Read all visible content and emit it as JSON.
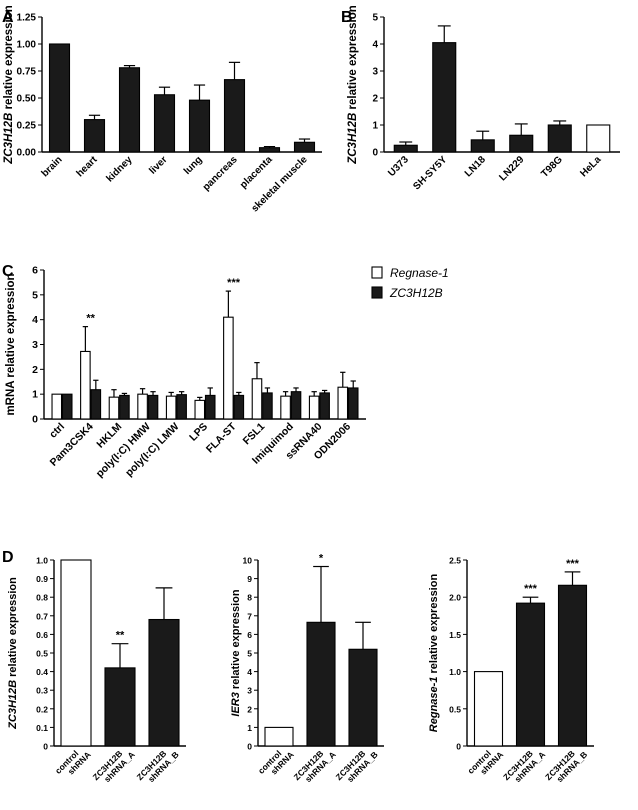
{
  "figure": {
    "colors": {
      "black": "#1a1a1a",
      "white": "#ffffff",
      "axis": "#000000"
    },
    "panel_letters": [
      "A",
      "B",
      "C",
      "D"
    ]
  },
  "chart_data": [
    {
      "id": "A",
      "type": "bar",
      "ylabel_italic": "ZC3H12B",
      "ylabel_rest": " relative expression",
      "ylim": [
        0,
        1.25
      ],
      "yticks": [
        0,
        0.25,
        0.5,
        0.75,
        1.0,
        1.25
      ],
      "ytick_labels": [
        "0.00",
        "0.25",
        "0.50",
        "0.75",
        "1.00",
        "1.25"
      ],
      "categories": [
        "brain",
        "heart",
        "kidney",
        "liver",
        "lung",
        "pancreas",
        "placenta",
        "skeletal muscle"
      ],
      "values": [
        1.0,
        0.3,
        0.78,
        0.53,
        0.48,
        0.67,
        0.04,
        0.09
      ],
      "errors": [
        0.0,
        0.04,
        0.02,
        0.07,
        0.14,
        0.16,
        0.01,
        0.03
      ],
      "fills": [
        "black",
        "black",
        "black",
        "black",
        "black",
        "black",
        "black",
        "black"
      ]
    },
    {
      "id": "B",
      "type": "bar",
      "ylabel_italic": "ZC3H12B",
      "ylabel_rest": " relative expression",
      "ylim": [
        0,
        5
      ],
      "yticks": [
        0,
        1,
        2,
        3,
        4,
        5
      ],
      "ytick_labels": [
        "0",
        "1",
        "2",
        "3",
        "4",
        "5"
      ],
      "categories": [
        "U373",
        "SH-SY5Y",
        "LN18",
        "LN229",
        "T98G",
        "HeLa"
      ],
      "values": [
        0.25,
        4.05,
        0.45,
        0.62,
        1.0,
        1.0
      ],
      "errors": [
        0.12,
        0.62,
        0.32,
        0.42,
        0.15,
        0.0
      ],
      "fills": [
        "black",
        "black",
        "black",
        "black",
        "black",
        "white"
      ]
    },
    {
      "id": "C",
      "type": "bar",
      "ylabel": "mRNA relative expression",
      "ylim": [
        0,
        6
      ],
      "yticks": [
        0,
        1,
        2,
        3,
        4,
        5,
        6
      ],
      "ytick_labels": [
        "0",
        "1",
        "2",
        "3",
        "4",
        "5",
        "6"
      ],
      "categories": [
        "ctrl",
        "Pam3CSK4",
        "HKLM",
        "poly(I:C) HMW",
        "poly(I:C) LMW",
        "LPS",
        "FLA-ST",
        "FSL1",
        "Imiquimod",
        "ssRNA40",
        "ODN2006"
      ],
      "series": [
        {
          "name": "Regnase-1",
          "fill": "white",
          "values": [
            1.0,
            2.72,
            0.88,
            1.0,
            0.92,
            0.75,
            4.1,
            1.62,
            0.92,
            0.92,
            1.28
          ],
          "errors": [
            0.0,
            1.0,
            0.3,
            0.22,
            0.15,
            0.12,
            1.05,
            0.65,
            0.18,
            0.18,
            0.6
          ]
        },
        {
          "name": "ZC3H12B",
          "fill": "black",
          "values": [
            1.0,
            1.18,
            0.95,
            0.95,
            0.98,
            0.95,
            0.95,
            1.05,
            1.1,
            1.05,
            1.25
          ],
          "errors": [
            0.0,
            0.38,
            0.08,
            0.15,
            0.12,
            0.3,
            0.12,
            0.2,
            0.15,
            0.1,
            0.28
          ]
        }
      ],
      "annotations": [
        {
          "category": "Pam3CSK4",
          "text": "**"
        },
        {
          "category": "FLA-ST",
          "text": "***"
        }
      ],
      "legend": [
        {
          "label": "Regnase-1",
          "fill": "white"
        },
        {
          "label": "ZC3H12B",
          "fill": "black"
        }
      ],
      "legend_position": "top-right"
    },
    {
      "id": "D1",
      "type": "bar",
      "ylabel_italic": "ZC3H12B",
      "ylabel_rest": " relative expression",
      "ylim": [
        0,
        1.0
      ],
      "yticks": [
        0,
        0.1,
        0.2,
        0.3,
        0.4,
        0.5,
        0.6,
        0.7,
        0.8,
        0.9,
        1.0
      ],
      "ytick_labels": [
        "0",
        "0.1",
        "0.2",
        "0.3",
        "0.4",
        "0.5",
        "0.6",
        "0.7",
        "0.8",
        "0.9",
        "1.0"
      ],
      "categories": [
        [
          "control",
          "shRNA"
        ],
        [
          "ZC3H12B",
          "shRNA_A"
        ],
        [
          "ZC3H12B",
          "shRNA_B"
        ]
      ],
      "values": [
        1.0,
        0.42,
        0.68
      ],
      "errors": [
        0.0,
        0.13,
        0.17
      ],
      "fills": [
        "white",
        "black",
        "black"
      ],
      "annotations": [
        {
          "index": 1,
          "text": "**"
        }
      ]
    },
    {
      "id": "D2",
      "type": "bar",
      "ylabel_italic": "IER3",
      "ylabel_rest": " relative expression",
      "ylim": [
        0,
        10
      ],
      "yticks": [
        0,
        1,
        2,
        3,
        4,
        5,
        6,
        7,
        8,
        9,
        10
      ],
      "ytick_labels": [
        "0",
        "1",
        "2",
        "3",
        "4",
        "5",
        "6",
        "7",
        "8",
        "9",
        "10"
      ],
      "categories": [
        [
          "control",
          "shRNA"
        ],
        [
          "ZC3H12B",
          "shRNA_A"
        ],
        [
          "ZC3H12B",
          "shRNA_B"
        ]
      ],
      "values": [
        1.0,
        6.65,
        5.2
      ],
      "errors": [
        0.0,
        3.0,
        1.45
      ],
      "fills": [
        "white",
        "black",
        "black"
      ],
      "annotations": [
        {
          "index": 1,
          "text": "*"
        }
      ]
    },
    {
      "id": "D3",
      "type": "bar",
      "ylabel_italic": "Regnase-1",
      "ylabel_rest": " relative expression",
      "ylim": [
        0,
        2.5
      ],
      "yticks": [
        0,
        0.5,
        1.0,
        1.5,
        2.0,
        2.5
      ],
      "ytick_labels": [
        "0",
        "0.5",
        "1.0",
        "1.5",
        "2.0",
        "2.5"
      ],
      "categories": [
        [
          "control",
          "shRNA"
        ],
        [
          "ZC3H12B",
          "shRNA_A"
        ],
        [
          "ZC3H12B",
          "shRNA_B"
        ]
      ],
      "values": [
        1.0,
        1.92,
        2.16
      ],
      "errors": [
        0.0,
        0.08,
        0.18
      ],
      "fills": [
        "white",
        "black",
        "black"
      ],
      "annotations": [
        {
          "index": 1,
          "text": "***"
        },
        {
          "index": 2,
          "text": "***"
        }
      ]
    }
  ]
}
